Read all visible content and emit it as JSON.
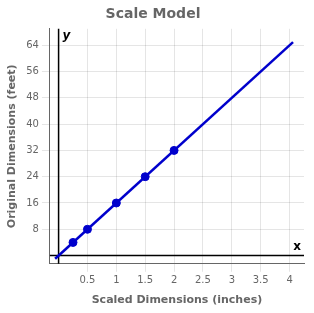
{
  "chart_data": {
    "type": "scatter",
    "title": "Scale Model",
    "xlabel": "Scaled Dimensions (inches)",
    "ylabel": "Original Dimensions (feet)",
    "series": [
      {
        "type": "line",
        "color": "#0000cc",
        "line_style": "solid",
        "marker": "none",
        "x": [
          -0.06,
          4.06
        ],
        "values": [
          -0.96,
          64.96
        ]
      },
      {
        "type": "scatter",
        "color": "#0000cc",
        "marker": "circle",
        "x": [
          0.25,
          0.5,
          1.0,
          1.5,
          2.0
        ],
        "values": [
          4,
          8,
          16,
          24,
          32
        ]
      }
    ],
    "xlim": [
      -0.15,
      4.25
    ],
    "ylim": [
      -2.5,
      69
    ],
    "xticks": [
      0.5,
      1.0,
      1.5,
      2.0,
      2.5,
      3.0,
      3.5,
      4.0
    ],
    "yticks": [
      8,
      16,
      24,
      32,
      40,
      48,
      56,
      64
    ],
    "grid": true,
    "annotations": [
      "x",
      "y"
    ]
  }
}
